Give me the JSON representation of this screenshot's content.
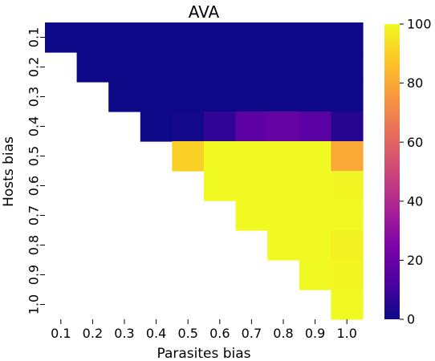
{
  "chart_data": {
    "type": "heatmap",
    "title": "AVA",
    "xlabel": "Parasites bias",
    "ylabel": "Hosts bias",
    "x_categories": [
      "0.1",
      "0.2",
      "0.3",
      "0.4",
      "0.5",
      "0.6",
      "0.7",
      "0.8",
      "0.9",
      "1.0"
    ],
    "y_categories": [
      "0.1",
      "0.2",
      "0.3",
      "0.4",
      "0.5",
      "0.6",
      "0.7",
      "0.8",
      "0.9",
      "1.0"
    ],
    "values": [
      [
        0,
        0,
        0,
        0,
        0,
        0,
        0,
        0,
        0,
        0
      ],
      [
        null,
        0,
        0,
        0,
        0,
        0,
        0,
        0,
        0,
        0
      ],
      [
        null,
        null,
        0,
        0,
        0,
        0,
        0,
        0,
        0,
        0
      ],
      [
        null,
        null,
        null,
        0,
        1,
        7,
        17,
        19,
        16,
        5
      ],
      [
        null,
        null,
        null,
        null,
        90,
        100,
        100,
        100,
        100,
        80
      ],
      [
        null,
        null,
        null,
        null,
        null,
        100,
        100,
        100,
        100,
        99
      ],
      [
        null,
        null,
        null,
        null,
        null,
        null,
        100,
        100,
        100,
        100
      ],
      [
        null,
        null,
        null,
        null,
        null,
        null,
        null,
        100,
        100,
        98
      ],
      [
        null,
        null,
        null,
        null,
        null,
        null,
        null,
        null,
        100,
        99
      ],
      [
        null,
        null,
        null,
        null,
        null,
        null,
        null,
        null,
        null,
        100
      ]
    ],
    "colorbar": {
      "min": 0,
      "max": 100,
      "ticks": [
        "0",
        "20",
        "40",
        "60",
        "80",
        "100"
      ],
      "colormap": "plasma"
    }
  }
}
